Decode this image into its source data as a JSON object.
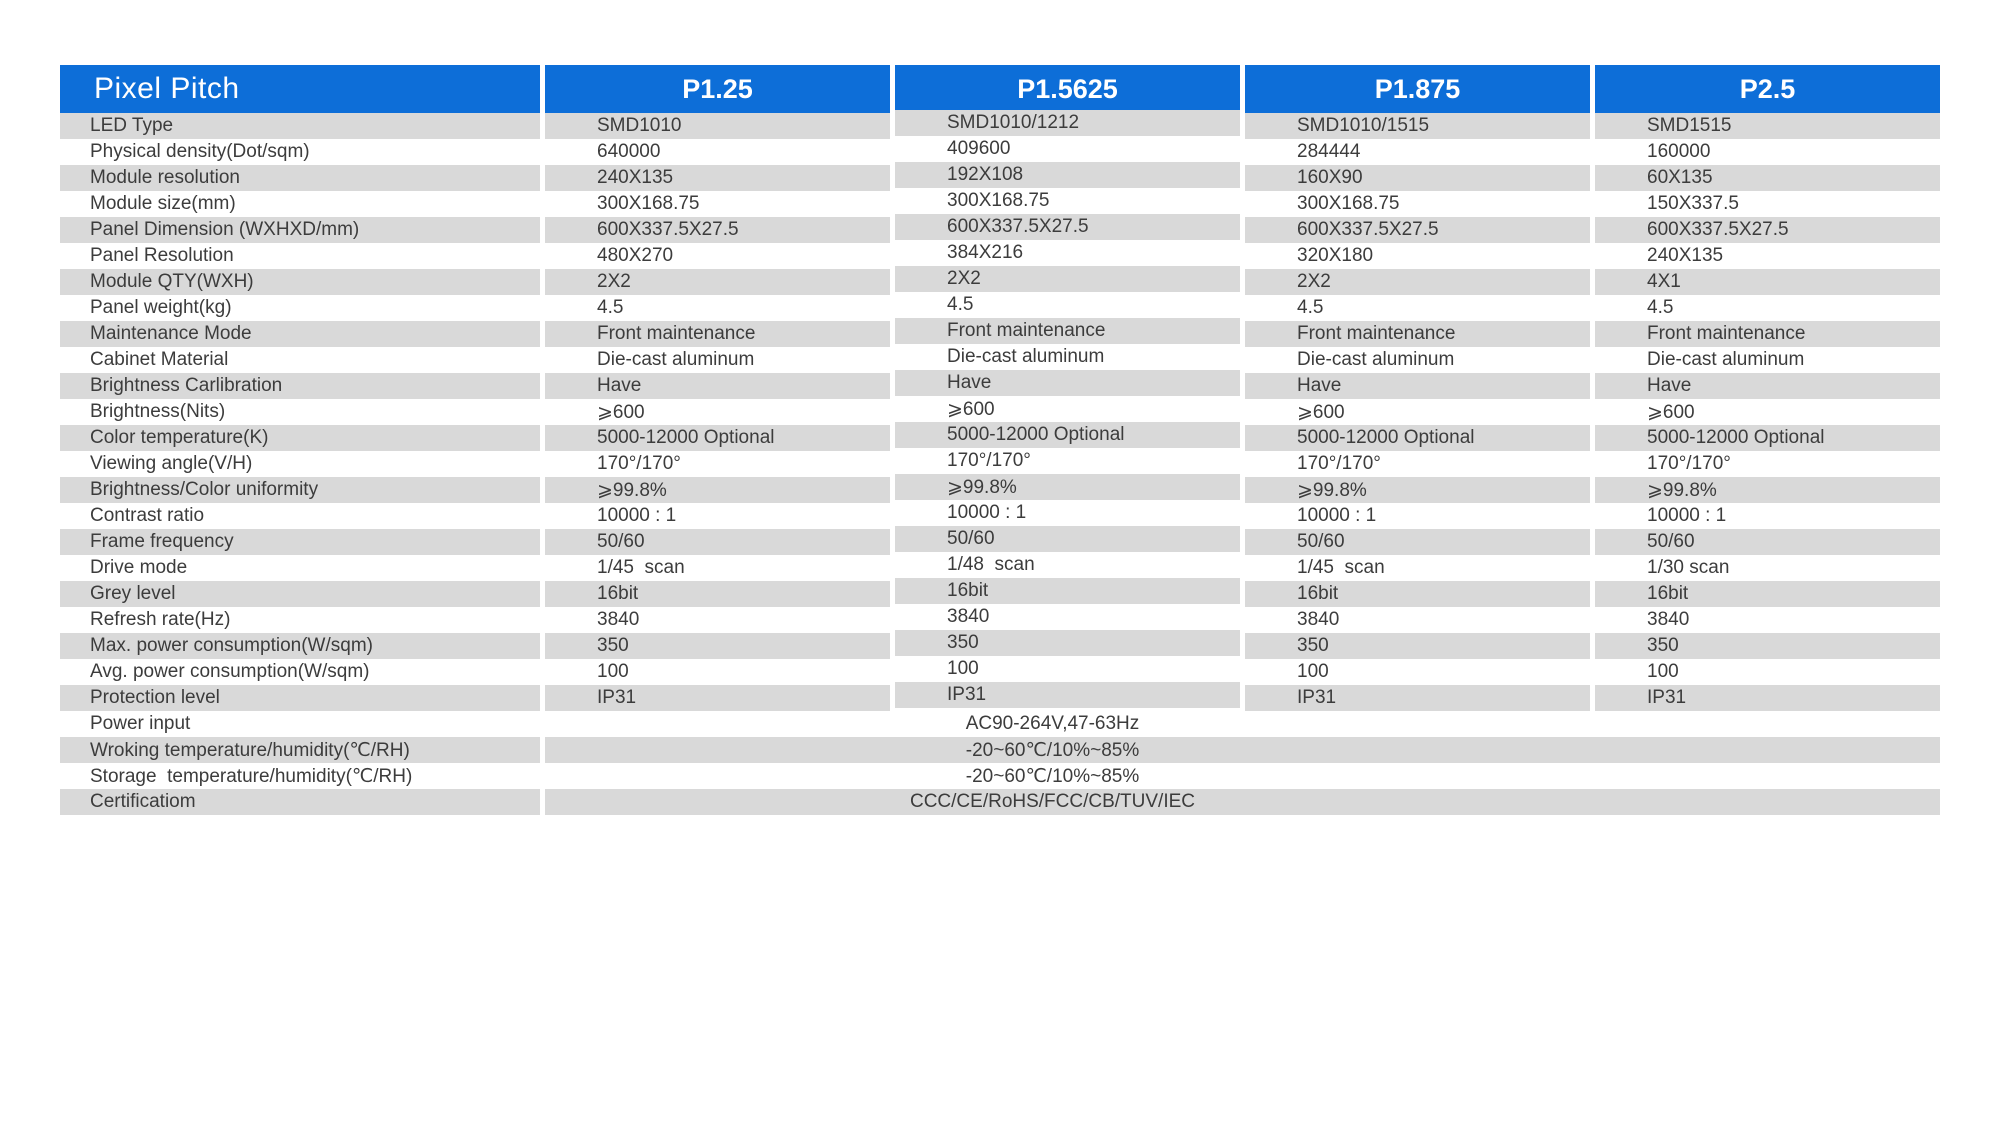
{
  "colors": {
    "header_bg": "#0d6ed8",
    "header_text": "#ffffff",
    "row_alt_bg": "#d9d9d9",
    "body_text": "#3c3c3c"
  },
  "table": {
    "header": {
      "label": "Pixel Pitch",
      "columns": [
        "P1.25",
        "P1.5625",
        "P1.875",
        "P2.5"
      ]
    },
    "rows": [
      {
        "label": "LED Type",
        "values": [
          "SMD1010",
          "SMD1010/1212",
          "SMD1010/1515",
          "SMD1515"
        ]
      },
      {
        "label": "Physical density(Dot/sqm)",
        "values": [
          "640000",
          "409600",
          "284444",
          "160000"
        ]
      },
      {
        "label": "Module resolution",
        "values": [
          "240X135",
          "192X108",
          "160X90",
          "60X135"
        ]
      },
      {
        "label": "Module size(mm)",
        "values": [
          "300X168.75",
          "300X168.75",
          "300X168.75",
          "150X337.5"
        ]
      },
      {
        "label": "Panel Dimension (WXHXD/mm)",
        "values": [
          "600X337.5X27.5",
          "600X337.5X27.5",
          "600X337.5X27.5",
          "600X337.5X27.5"
        ]
      },
      {
        "label": "Panel Resolution",
        "values": [
          "480X270",
          "384X216",
          "320X180",
          "240X135"
        ]
      },
      {
        "label": "Module QTY(WXH)",
        "values": [
          "2X2",
          "2X2",
          "2X2",
          "4X1"
        ]
      },
      {
        "label": "Panel weight(kg)",
        "values": [
          "4.5",
          "4.5",
          "4.5",
          "4.5"
        ]
      },
      {
        "label": "Maintenance Mode",
        "values": [
          "Front maintenance",
          "Front maintenance",
          "Front maintenance",
          "Front maintenance"
        ]
      },
      {
        "label": "Cabinet Material",
        "values": [
          "Die-cast aluminum",
          "Die-cast aluminum",
          "Die-cast aluminum",
          "Die-cast aluminum"
        ]
      },
      {
        "label": "Brightness Carlibration",
        "values": [
          "Have",
          "Have",
          "Have",
          "Have"
        ]
      },
      {
        "label": "Brightness(Nits)",
        "values": [
          "⩾600",
          "⩾600",
          "⩾600",
          "⩾600"
        ]
      },
      {
        "label": "Color temperature(K)",
        "values": [
          "5000-12000 Optional",
          "5000-12000 Optional",
          "5000-12000 Optional",
          "5000-12000 Optional"
        ]
      },
      {
        "label": "Viewing angle(V/H)",
        "values": [
          "170°/170°",
          "170°/170°",
          "170°/170°",
          "170°/170°"
        ]
      },
      {
        "label": "Brightness/Color uniformity",
        "values": [
          "⩾99.8%",
          "⩾99.8%",
          "⩾99.8%",
          "⩾99.8%"
        ]
      },
      {
        "label": "Contrast ratio",
        "values": [
          "10000 : 1",
          "10000 : 1",
          "10000 : 1",
          "10000 : 1"
        ]
      },
      {
        "label": "Frame frequency",
        "values": [
          "50/60",
          "50/60",
          "50/60",
          "50/60"
        ]
      },
      {
        "label": "Drive mode",
        "values": [
          "1/45  scan",
          "1/48  scan",
          "1/45  scan",
          "1/30 scan"
        ]
      },
      {
        "label": "Grey level",
        "values": [
          "16bit",
          "16bit",
          "16bit",
          "16bit"
        ]
      },
      {
        "label": "Refresh rate(Hz)",
        "values": [
          "3840",
          "3840",
          "3840",
          "3840"
        ]
      },
      {
        "label": "Max. power consumption(W/sqm)",
        "values": [
          "350",
          "350",
          "350",
          "350"
        ]
      },
      {
        "label": "Avg. power consumption(W/sqm)",
        "values": [
          "100",
          "100",
          "100",
          "100"
        ]
      },
      {
        "label": "Protection level",
        "values": [
          "IP31",
          "IP31",
          "IP31",
          "IP31"
        ]
      }
    ],
    "spanned_rows": [
      {
        "label": "Power input",
        "value": "AC90-264V,47-63Hz"
      },
      {
        "label": "Wroking temperature/humidity(℃/RH)",
        "value": "-20~60℃/10%~85%"
      },
      {
        "label": "Storage  temperature/humidity(℃/RH)",
        "value": "-20~60℃/10%~85%"
      },
      {
        "label": "Certificatiom",
        "value": "CCC/CE/RoHS/FCC/CB/TUV/IEC"
      }
    ]
  }
}
